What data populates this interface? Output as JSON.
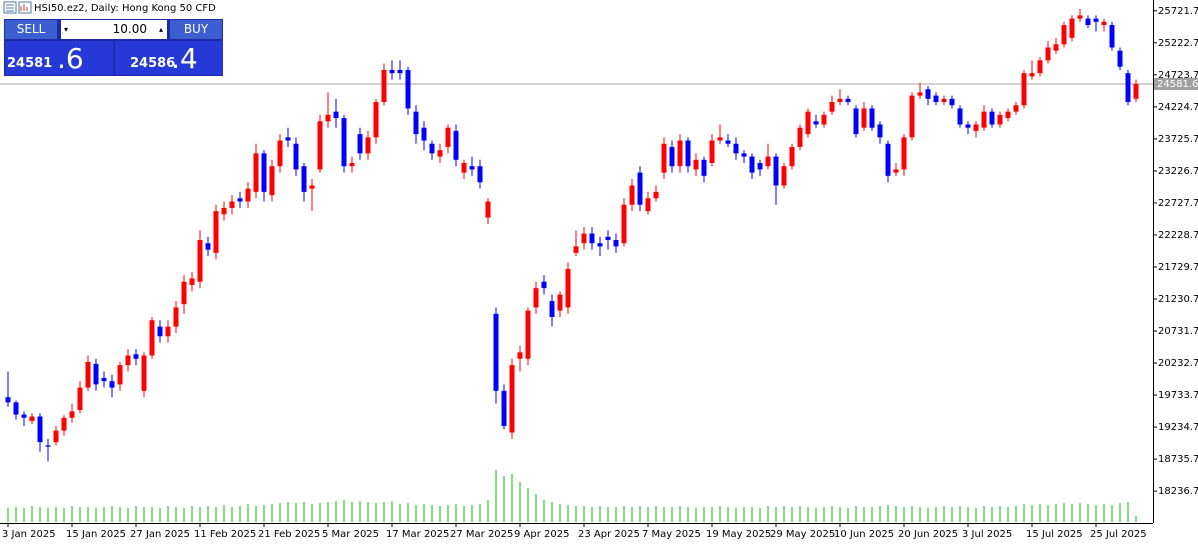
{
  "chart_data": {
    "type": "candlestick",
    "title": "HSI50.ez2, Daily:  Hong Kong 50 CFD",
    "up_color": "#ff0000",
    "down_color": "#0000ff",
    "volume_color": "#00c000",
    "ylim": [
      17740,
      25890
    ],
    "yticks": [
      18236.7,
      18735.7,
      19234.7,
      19733.7,
      20232.7,
      20731.7,
      21230.7,
      21729.7,
      22228.7,
      22727.7,
      23226.7,
      23725.7,
      24224.7,
      24723.7,
      25222.7,
      25721.7
    ],
    "current_price": 24581.6,
    "categories": [
      "3 Jan 2025",
      null,
      null,
      null,
      null,
      null,
      null,
      null,
      "15 Jan 2025",
      null,
      null,
      null,
      null,
      null,
      null,
      null,
      "27 Jan 2025",
      null,
      null,
      null,
      null,
      null,
      null,
      null,
      "11 Feb 2025",
      null,
      null,
      null,
      null,
      null,
      null,
      null,
      "21 Feb 2025",
      null,
      null,
      null,
      null,
      null,
      null,
      null,
      "5 Mar 2025",
      null,
      null,
      null,
      null,
      null,
      null,
      null,
      "17 Mar 2025",
      null,
      null,
      null,
      null,
      null,
      null,
      null,
      "27 Mar 2025",
      null,
      null,
      null,
      null,
      null,
      null,
      null,
      "9 Apr 2025",
      null,
      null,
      null,
      null,
      null,
      null,
      null,
      "23 Apr 2025",
      null,
      null,
      null,
      null,
      null,
      null,
      null,
      "7 May 2025",
      null,
      null,
      null,
      null,
      null,
      null,
      null,
      "19 May 2025",
      null,
      null,
      null,
      null,
      null,
      null,
      null,
      "29 May 2025",
      null,
      null,
      null,
      null,
      null,
      null,
      null,
      "10 Jun 2025",
      null,
      null,
      null,
      null,
      null,
      null,
      null,
      "20 Jun 2025",
      null,
      null,
      null,
      null,
      null,
      null,
      null,
      "3 Jul 2025",
      null,
      null,
      null,
      null,
      null,
      null,
      null,
      "15 Jul 2025",
      null,
      null,
      null,
      null,
      null,
      null,
      null,
      "25 Jul 2025",
      null,
      null,
      null,
      null,
      null
    ],
    "open": [
      19700,
      19620,
      19430,
      19330,
      19400,
      18950,
      19000,
      19180,
      19380,
      19500,
      19850,
      20220,
      20000,
      19950,
      19900,
      20200,
      20370,
      19800,
      20350,
      20800,
      20650,
      20800,
      21150,
      21450,
      21500,
      22100,
      21950,
      22550,
      22650,
      22800,
      22750,
      22900,
      23500,
      22850,
      23300,
      23750,
      23650,
      23300,
      22950,
      23250,
      24000,
      24150,
      24050,
      23300,
      23800,
      23500,
      23750,
      24300,
      24800,
      24800,
      24800,
      24150,
      23900,
      23650,
      23450,
      23600,
      23850,
      23200,
      23300,
      23300,
      22500,
      21000,
      19800,
      19150,
      20300,
      20300,
      21100,
      21500,
      21200,
      21050,
      21100,
      21950,
      22100,
      22250,
      22100,
      22200,
      22150,
      22100,
      22700,
      23200,
      22600,
      22800,
      23200,
      23600,
      23300,
      23700,
      23250,
      23400,
      23350,
      23700,
      23700,
      23650,
      23500,
      23450,
      23350,
      23300,
      23450,
      23000,
      23300,
      23600,
      23800,
      24000,
      23950,
      24150,
      24300,
      24350,
      24200,
      23900,
      24200,
      23950,
      23650,
      23200,
      23250,
      23750,
      24400,
      24500,
      24400,
      24300,
      24350,
      24200,
      23950,
      23850,
      23900,
      24150,
      23950,
      24050,
      24150,
      24250,
      24700,
      24750,
      24950,
      25100,
      25200,
      25300,
      25600,
      25600,
      25600,
      25500,
      25500,
      25100,
      24750,
      24350
    ],
    "high": [
      20100,
      19650,
      19480,
      19450,
      19450,
      19050,
      19250,
      19420,
      19600,
      19950,
      20350,
      20300,
      20100,
      20050,
      20250,
      20450,
      20450,
      20400,
      20950,
      20900,
      20900,
      21200,
      21600,
      21650,
      22300,
      22200,
      22700,
      22750,
      22850,
      22900,
      23050,
      23650,
      23550,
      23400,
      23800,
      23900,
      23750,
      23350,
      23100,
      24100,
      24450,
      24350,
      24100,
      23450,
      23900,
      23850,
      24350,
      24900,
      24950,
      24950,
      24850,
      24250,
      24000,
      23700,
      23650,
      23950,
      23950,
      23400,
      23450,
      23400,
      22800,
      21100,
      19900,
      20300,
      20500,
      21100,
      21500,
      21600,
      21300,
      21350,
      21800,
      22300,
      22350,
      22350,
      22200,
      22300,
      22250,
      22800,
      23100,
      23300,
      22900,
      23000,
      23750,
      23700,
      23800,
      23750,
      23500,
      23450,
      23800,
      23950,
      23800,
      23750,
      23550,
      23500,
      23400,
      23650,
      23500,
      23350,
      23650,
      23950,
      24200,
      24100,
      24150,
      24400,
      24500,
      24400,
      24250,
      24300,
      24250,
      24000,
      23700,
      23350,
      23800,
      24450,
      24600,
      24550,
      24450,
      24400,
      24400,
      24250,
      24000,
      24000,
      24250,
      24200,
      24150,
      24200,
      24300,
      24800,
      24950,
      25000,
      25250,
      25300,
      25550,
      25650,
      25750,
      25650,
      25650,
      25600,
      25550,
      25150,
      24800,
      24650
    ],
    "low": [
      19550,
      19350,
      19250,
      19280,
      18850,
      18700,
      18950,
      19100,
      19300,
      19450,
      19800,
      19800,
      19850,
      19700,
      19800,
      20100,
      20200,
      19700,
      20300,
      20550,
      20550,
      20700,
      21000,
      21350,
      21400,
      21900,
      21850,
      22450,
      22550,
      22650,
      22650,
      22800,
      22750,
      22750,
      23200,
      23600,
      23150,
      22750,
      22600,
      23200,
      23900,
      23900,
      23200,
      23200,
      23400,
      23400,
      23650,
      24250,
      24650,
      24650,
      24100,
      23650,
      23550,
      23400,
      23350,
      23500,
      23300,
      23100,
      23150,
      22950,
      22400,
      19600,
      19200,
      19050,
      20100,
      20200,
      21000,
      21300,
      20800,
      20950,
      21000,
      21900,
      22000,
      22000,
      21900,
      22000,
      21950,
      22050,
      22600,
      22600,
      22550,
      22750,
      23100,
      23200,
      23200,
      23200,
      23150,
      23050,
      23300,
      23650,
      23600,
      23400,
      23350,
      23100,
      23150,
      23250,
      22700,
      22950,
      23250,
      23550,
      23750,
      23900,
      23900,
      24100,
      24250,
      24250,
      23750,
      23850,
      23850,
      23650,
      23050,
      23150,
      23150,
      23700,
      24350,
      24250,
      24250,
      24250,
      24200,
      23900,
      23800,
      23750,
      23850,
      23900,
      23900,
      24000,
      24100,
      24200,
      24650,
      24700,
      24900,
      25050,
      25150,
      25250,
      25550,
      25450,
      25400,
      25400,
      25100,
      24800,
      24250,
      24300
    ],
    "close": [
      19620,
      19430,
      19380,
      19400,
      19000,
      18930,
      19180,
      19380,
      19480,
      19850,
      20250,
      19900,
      19950,
      19850,
      20200,
      20350,
      20300,
      20350,
      20900,
      20650,
      20800,
      21100,
      21500,
      21550,
      22150,
      22000,
      22600,
      22650,
      22750,
      22750,
      22950,
      23500,
      22900,
      23300,
      23700,
      23700,
      23250,
      22900,
      23000,
      24000,
      24100,
      24050,
      23300,
      23350,
      23500,
      23750,
      24300,
      24800,
      24750,
      24750,
      24200,
      23800,
      23700,
      23500,
      23550,
      23900,
      23400,
      23350,
      23250,
      23050,
      22750,
      19800,
      19250,
      20200,
      20400,
      21050,
      21400,
      21400,
      20950,
      21300,
      21700,
      22050,
      22250,
      22100,
      22050,
      22150,
      22050,
      22700,
      23000,
      22700,
      22800,
      22900,
      23650,
      23300,
      23700,
      23300,
      23400,
      23150,
      23700,
      23750,
      23650,
      23500,
      23450,
      23200,
      23250,
      23450,
      23000,
      23300,
      23600,
      23900,
      24150,
      23950,
      24100,
      24300,
      24350,
      24300,
      23800,
      24200,
      23900,
      23750,
      23150,
      23250,
      23750,
      24400,
      24450,
      24350,
      24300,
      24350,
      24250,
      23950,
      23900,
      23950,
      24150,
      23950,
      24100,
      24150,
      24250,
      24750,
      24750,
      24950,
      25150,
      25200,
      25500,
      25600,
      25650,
      25500,
      25550,
      25550,
      25150,
      24850,
      24300,
      24581.6
    ],
    "volumes": [
      14,
      15,
      14,
      16,
      15,
      14,
      15,
      14,
      16,
      15,
      15,
      14,
      15,
      16,
      15,
      14,
      16,
      15,
      15,
      14,
      16,
      15,
      14,
      16,
      15,
      16,
      15,
      17,
      15,
      16,
      18,
      16,
      17,
      18,
      19,
      20,
      19,
      20,
      18,
      19,
      20,
      21,
      22,
      20,
      21,
      20,
      19,
      20,
      21,
      18,
      19,
      17,
      18,
      17,
      16,
      17,
      18,
      16,
      17,
      18,
      22,
      52,
      46,
      48,
      40,
      34,
      28,
      22,
      20,
      18,
      17,
      16,
      16,
      15,
      16,
      15,
      15,
      16,
      15,
      16,
      15,
      16,
      15,
      15,
      16,
      15,
      14,
      15,
      15,
      16,
      15,
      14,
      15,
      15,
      14,
      16,
      15,
      16,
      15,
      16,
      15,
      14,
      15,
      16,
      15,
      14,
      16,
      15,
      15,
      16,
      17,
      16,
      15,
      16,
      15,
      14,
      15,
      16,
      15,
      16,
      15,
      14,
      16,
      15,
      16,
      15,
      16,
      18,
      17,
      18,
      17,
      18,
      19,
      18,
      19,
      18,
      17,
      18,
      17,
      19,
      20,
      6
    ]
  },
  "trade_panel": {
    "sell_label": "SELL",
    "buy_label": "BUY",
    "volume": "10.00",
    "sell_price_main": "24581",
    "sell_price_frac": ".6",
    "buy_price_main": "24586",
    "buy_price_frac": ".4"
  }
}
